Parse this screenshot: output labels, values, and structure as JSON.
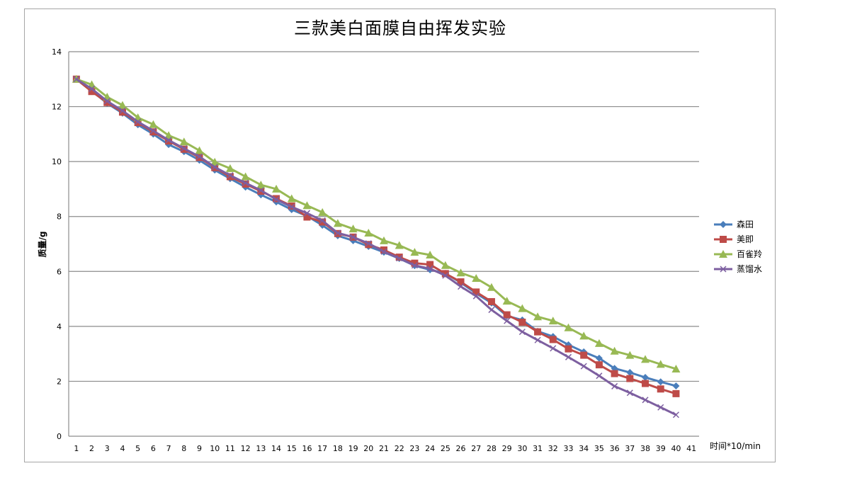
{
  "chart_data": {
    "type": "line",
    "title": "三款美白面膜自由挥发实验",
    "xlabel": "时间*10/min",
    "ylabel": "质量/g",
    "ylim": [
      0,
      14
    ],
    "yticks": [
      0,
      2,
      4,
      6,
      8,
      10,
      12,
      14
    ],
    "grid": true,
    "legend_position": "right",
    "categories": [
      1,
      2,
      3,
      4,
      5,
      6,
      7,
      8,
      9,
      10,
      11,
      12,
      13,
      14,
      15,
      16,
      17,
      18,
      19,
      20,
      21,
      22,
      23,
      24,
      25,
      26,
      27,
      28,
      29,
      30,
      31,
      32,
      33,
      34,
      35,
      36,
      37,
      38,
      39,
      40
    ],
    "x_tick_labels": [
      "1",
      "2",
      "3",
      "4",
      "5",
      "6",
      "7",
      "8",
      "9",
      "10",
      "11",
      "12",
      "13",
      "14",
      "15",
      "16",
      "17",
      "18",
      "19",
      "20",
      "21",
      "22",
      "23",
      "24",
      "25",
      "26",
      "27",
      "28",
      "29",
      "30",
      "31",
      "32",
      "33",
      "34",
      "35",
      "36",
      "37",
      "38",
      "39",
      "40",
      "41"
    ],
    "series": [
      {
        "name": "森田",
        "color": "#4a7ebb",
        "marker": "diamond",
        "values": [
          13.0,
          12.58,
          12.12,
          11.76,
          11.34,
          11.0,
          10.62,
          10.36,
          10.05,
          9.69,
          9.38,
          9.07,
          8.79,
          8.53,
          8.25,
          8.02,
          7.68,
          7.3,
          7.12,
          6.91,
          6.7,
          6.47,
          6.21,
          6.06,
          5.93,
          5.59,
          5.2,
          4.85,
          4.38,
          4.23,
          3.82,
          3.63,
          3.33,
          3.07,
          2.84,
          2.47,
          2.32,
          2.14,
          1.98,
          1.83
        ]
      },
      {
        "name": "美即",
        "color": "#be4b48",
        "marker": "square",
        "values": [
          13.0,
          12.55,
          12.15,
          11.8,
          11.42,
          11.08,
          10.75,
          10.45,
          10.15,
          9.78,
          9.45,
          9.18,
          8.92,
          8.65,
          8.38,
          7.98,
          7.8,
          7.38,
          7.25,
          6.98,
          6.78,
          6.52,
          6.3,
          6.25,
          5.92,
          5.62,
          5.25,
          4.9,
          4.42,
          4.15,
          3.8,
          3.52,
          3.18,
          2.95,
          2.6,
          2.28,
          2.1,
          1.92,
          1.72,
          1.55
        ]
      },
      {
        "name": "百雀羚",
        "color": "#98b954",
        "marker": "triangle",
        "values": [
          13.0,
          12.8,
          12.35,
          12.05,
          11.6,
          11.35,
          10.95,
          10.72,
          10.4,
          9.98,
          9.75,
          9.45,
          9.15,
          9.0,
          8.65,
          8.4,
          8.15,
          7.75,
          7.55,
          7.4,
          7.12,
          6.95,
          6.7,
          6.6,
          6.22,
          5.95,
          5.75,
          5.42,
          4.92,
          4.65,
          4.35,
          4.2,
          3.95,
          3.65,
          3.38,
          3.1,
          2.95,
          2.8,
          2.62,
          2.45
        ]
      },
      {
        "name": "蒸馏水",
        "color": "#7d5fa0",
        "marker": "x",
        "values": [
          13.0,
          12.65,
          12.2,
          11.85,
          11.45,
          11.12,
          10.78,
          10.48,
          10.18,
          9.8,
          9.5,
          9.22,
          8.95,
          8.62,
          8.35,
          8.12,
          7.85,
          7.4,
          7.25,
          7.02,
          6.72,
          6.48,
          6.22,
          6.1,
          5.85,
          5.45,
          5.1,
          4.6,
          4.2,
          3.8,
          3.5,
          3.2,
          2.88,
          2.55,
          2.2,
          1.82,
          1.58,
          1.32,
          1.05,
          0.78
        ]
      }
    ]
  },
  "colors": {
    "gridline": "#8c8c8c",
    "frame_border": "#a6a6a6"
  }
}
